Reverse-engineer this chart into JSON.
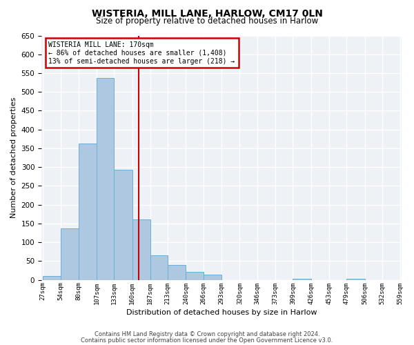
{
  "title": "WISTERIA, MILL LANE, HARLOW, CM17 0LN",
  "subtitle": "Size of property relative to detached houses in Harlow",
  "xlabel": "Distribution of detached houses by size in Harlow",
  "ylabel": "Number of detached properties",
  "bar_values": [
    10,
    137,
    363,
    537,
    293,
    160,
    65,
    40,
    22,
    13,
    0,
    0,
    0,
    0,
    2,
    0,
    0,
    2,
    0,
    0
  ],
  "bin_edges": [
    27,
    54,
    80,
    107,
    133,
    160,
    187,
    213,
    240,
    266,
    293,
    320,
    346,
    373,
    399,
    426,
    453,
    479,
    506,
    532,
    559
  ],
  "tick_labels": [
    "27sqm",
    "54sqm",
    "80sqm",
    "107sqm",
    "133sqm",
    "160sqm",
    "187sqm",
    "213sqm",
    "240sqm",
    "266sqm",
    "293sqm",
    "320sqm",
    "346sqm",
    "373sqm",
    "399sqm",
    "426sqm",
    "453sqm",
    "479sqm",
    "506sqm",
    "532sqm",
    "559sqm"
  ],
  "bar_color": "#adc8e0",
  "bar_edge_color": "#6aaed6",
  "vline_x": 170,
  "vline_color": "#cc0000",
  "annotation_title": "WISTERIA MILL LANE: 170sqm",
  "annotation_line1": "← 86% of detached houses are smaller (1,408)",
  "annotation_line2": "13% of semi-detached houses are larger (218) →",
  "annotation_box_edge": "#cc0000",
  "ylim": [
    0,
    650
  ],
  "yticks": [
    0,
    50,
    100,
    150,
    200,
    250,
    300,
    350,
    400,
    450,
    500,
    550,
    600,
    650
  ],
  "footer_line1": "Contains HM Land Registry data © Crown copyright and database right 2024.",
  "footer_line2": "Contains public sector information licensed under the Open Government Licence v3.0.",
  "bg_color": "#eef2f7"
}
